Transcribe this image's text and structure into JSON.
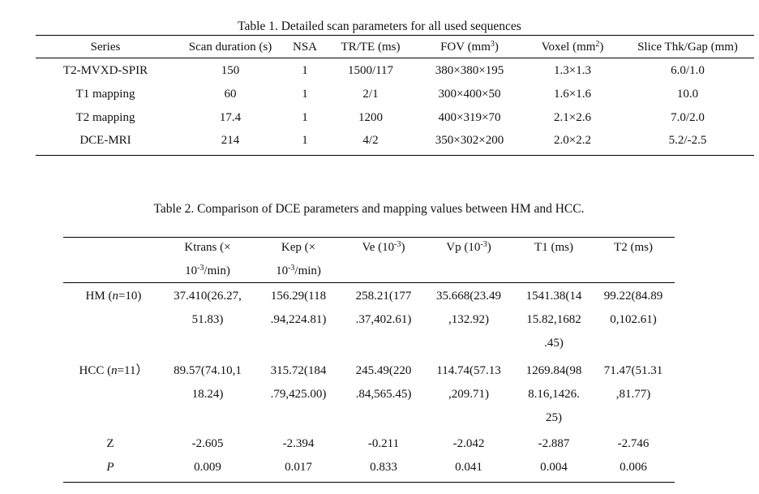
{
  "table1": {
    "caption": "Table 1. Detailed scan parameters for all used sequences",
    "headers": [
      "Series",
      "Scan duration (s)",
      "NSA",
      "TR/TE (ms)",
      "FOV (mm3)",
      "Voxel (mm2)",
      "Slice Thk/Gap (mm)"
    ],
    "header_parts": {
      "fov_pre": "FOV (mm",
      "fov_sup": "3",
      "fov_post": ")",
      "voxel_pre": "Voxel (mm",
      "voxel_sup": "2",
      "voxel_post": ")"
    },
    "rows": [
      [
        "T2-MVXD-SPIR",
        "150",
        "1",
        "1500/117",
        "380×380×195",
        "1.3×1.3",
        "6.0/1.0"
      ],
      [
        "T1 mapping",
        "60",
        "1",
        "2/1",
        "300×400×50",
        "1.6×1.6",
        "10.0"
      ],
      [
        "T2 mapping",
        "17.4",
        "1",
        "1200",
        "400×319×70",
        "2.1×2.6",
        "7.0/2.0"
      ],
      [
        "DCE-MRI",
        "214",
        "1",
        "4/2",
        "350×302×200",
        "2.0×2.2",
        "5.2/-2.5"
      ]
    ]
  },
  "table2": {
    "caption": "Table 2. Comparison of DCE parameters and mapping values between HM and HCC.",
    "headers": [
      {
        "l1": "Ktrans (×",
        "l2pre": "10",
        "l2sup": "-3",
        "l2post": "/min)"
      },
      {
        "l1": "Kep (×",
        "l2pre": "10",
        "l2sup": "-3",
        "l2post": "/min)"
      },
      {
        "l1pre": "Ve (10",
        "l1sup": "-3",
        "l1post": ")"
      },
      {
        "l1pre": "Vp (10",
        "l1sup": "-3",
        "l1post": ")"
      },
      {
        "l1": "T1 (ms)"
      },
      {
        "l1": "T2 (ms)"
      }
    ],
    "rows": [
      {
        "label_pre": "HM (",
        "label_n": "n",
        "label_post": "=10)",
        "cells": [
          [
            "37.410(26.27,",
            "51.83)"
          ],
          [
            "156.29(118",
            ".94,224.81)"
          ],
          [
            "258.21(177",
            ".37,402.61)"
          ],
          [
            "35.668(23.49",
            ",132.92)"
          ],
          [
            "1541.38(14",
            "15.82,1682",
            ".45)"
          ],
          [
            "99.22(84.89",
            "0,102.61)"
          ]
        ]
      },
      {
        "label_pre": "HCC (",
        "label_n": "n",
        "label_post": "=11）",
        "cells": [
          [
            "89.57(74.10,1",
            "18.24)"
          ],
          [
            "315.72(184",
            ".79,425.00)"
          ],
          [
            "245.49(220",
            ".84,565.45)"
          ],
          [
            "114.74(57.13",
            ",209.71)"
          ],
          [
            "1269.84(98",
            "8.16,1426.",
            "25)"
          ],
          [
            "71.47(51.31",
            ",81.77)"
          ]
        ]
      }
    ],
    "z_label": "Z",
    "z_values": [
      "-2.605",
      "-2.394",
      "-0.211",
      "-2.042",
      "-2.887",
      "-2.746"
    ],
    "p_label": "P",
    "p_values": [
      "0.009",
      "0.017",
      "0.833",
      "0.041",
      "0.004",
      "0.006"
    ]
  }
}
